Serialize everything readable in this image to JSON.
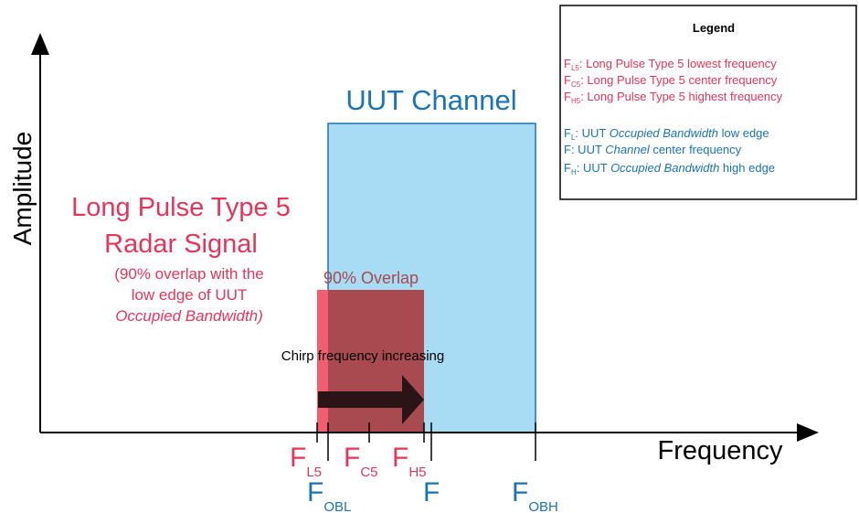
{
  "axes": {
    "y_label": "Amplitude",
    "x_label": "Frequency"
  },
  "uut_channel": {
    "title": "UUT Channel"
  },
  "radar": {
    "title_line1": "Long Pulse Type 5",
    "title_line2": "Radar Signal",
    "note_line1": "(90% overlap with the",
    "note_line2": "low edge of UUT",
    "note_line3": "Occupied Bandwidth)"
  },
  "overlap_label": "90% Overlap",
  "chirp_label": "Chirp frequency increasing",
  "markers": {
    "f_l5": {
      "main": "F",
      "sub": "L5"
    },
    "f_c5": {
      "main": "F",
      "sub": "C5"
    },
    "f_h5": {
      "main": "F",
      "sub": "H5"
    },
    "f_obl": {
      "main": "F",
      "sub": "OBL"
    },
    "f": {
      "main": "F",
      "sub": ""
    },
    "f_obh": {
      "main": "F",
      "sub": "OBH"
    }
  },
  "legend": {
    "title": "Legend",
    "items": [
      {
        "main": "F",
        "sub": "L5",
        "text": ": Long Pulse Type 5 lowest frequency",
        "color": "red"
      },
      {
        "main": "F",
        "sub": "C5",
        "text": ": Long Pulse Type 5 center frequency",
        "color": "red"
      },
      {
        "main": "F",
        "sub": "H5",
        "text": ": Long Pulse Type 5 highest frequency",
        "color": "red"
      },
      {
        "main": "F",
        "sub": "L",
        "text_pre": ": UUT ",
        "text_em": "Occupied Bandwidth",
        "text_post": " low edge",
        "color": "blue"
      },
      {
        "main": "F",
        "sub": "",
        "text_pre": ": UUT ",
        "text_em": "Channel",
        "text_post": " center frequency",
        "color": "blue"
      },
      {
        "main": "F",
        "sub": "H",
        "text_pre": ": UUT ",
        "text_em": "Occupied Bandwidth",
        "text_post": " high edge",
        "color": "blue"
      }
    ]
  },
  "colors": {
    "uut_fill": "#a8dcf5",
    "uut_stroke": "#1a73b5",
    "radar_fill": "#f25d6f",
    "overlap_fill": "#a84a4f",
    "red_text": "#e8345a",
    "blue_text": "#1a73b5",
    "arrow": "#2a1416"
  }
}
